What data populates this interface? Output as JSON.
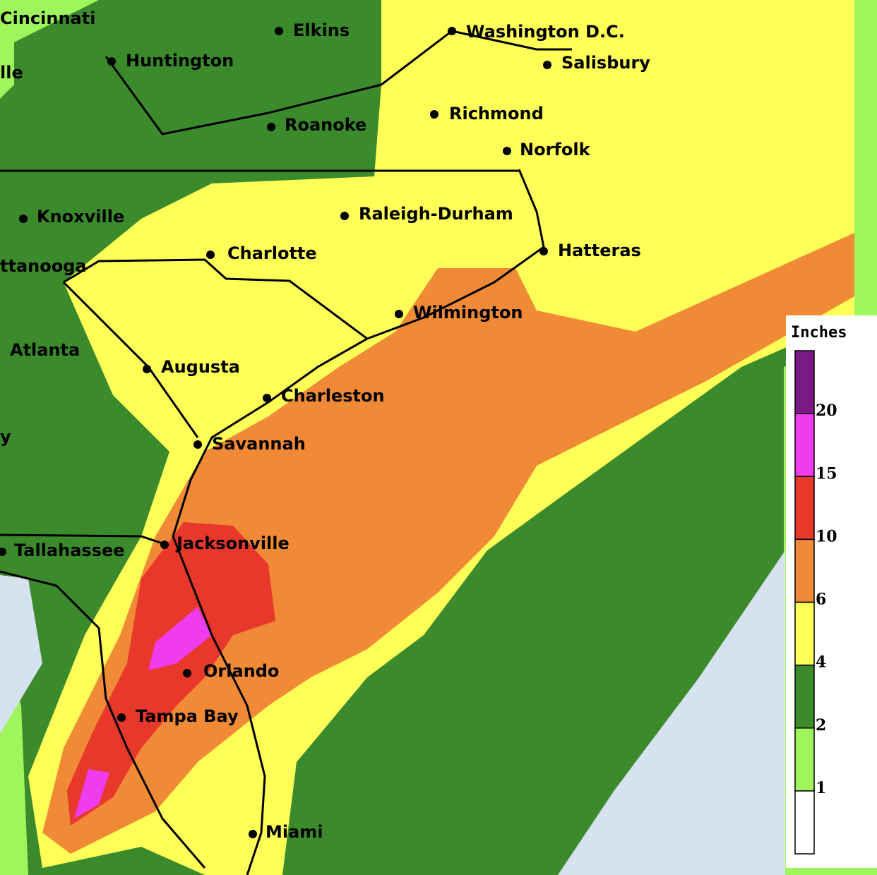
{
  "map": {
    "cities": [
      {
        "label": "Cincinnati"
      },
      {
        "label": "Elkins"
      },
      {
        "label": "Washington D.C."
      },
      {
        "label": "Huntington"
      },
      {
        "label": "Salisbury"
      },
      {
        "label": "lle"
      },
      {
        "label": "Richmond"
      },
      {
        "label": "Roanoke"
      },
      {
        "label": "Norfolk"
      },
      {
        "label": "Knoxville"
      },
      {
        "label": "Raleigh-Durham"
      },
      {
        "label": "Hatteras"
      },
      {
        "label": "Charlotte"
      },
      {
        "label": "ttanooga"
      },
      {
        "label": "Wilmington"
      },
      {
        "label": "Atlanta"
      },
      {
        "label": "Augusta"
      },
      {
        "label": "Charleston"
      },
      {
        "label": "y"
      },
      {
        "label": "Savannah"
      },
      {
        "label": "Jacksonville"
      },
      {
        "label": "Tallahassee"
      },
      {
        "label": "Orlando"
      },
      {
        "label": "Tampa Bay"
      },
      {
        "label": "Miami"
      }
    ]
  },
  "legend": {
    "title": "Inches",
    "colors": [
      "#7b1a86",
      "#ee3cee",
      "#e8372b",
      "#f08a36",
      "#ffff58",
      "#3b8a2b",
      "#9ef65c",
      "#ffffff"
    ],
    "labels": [
      20,
      15,
      10,
      6,
      4,
      2,
      1
    ]
  }
}
